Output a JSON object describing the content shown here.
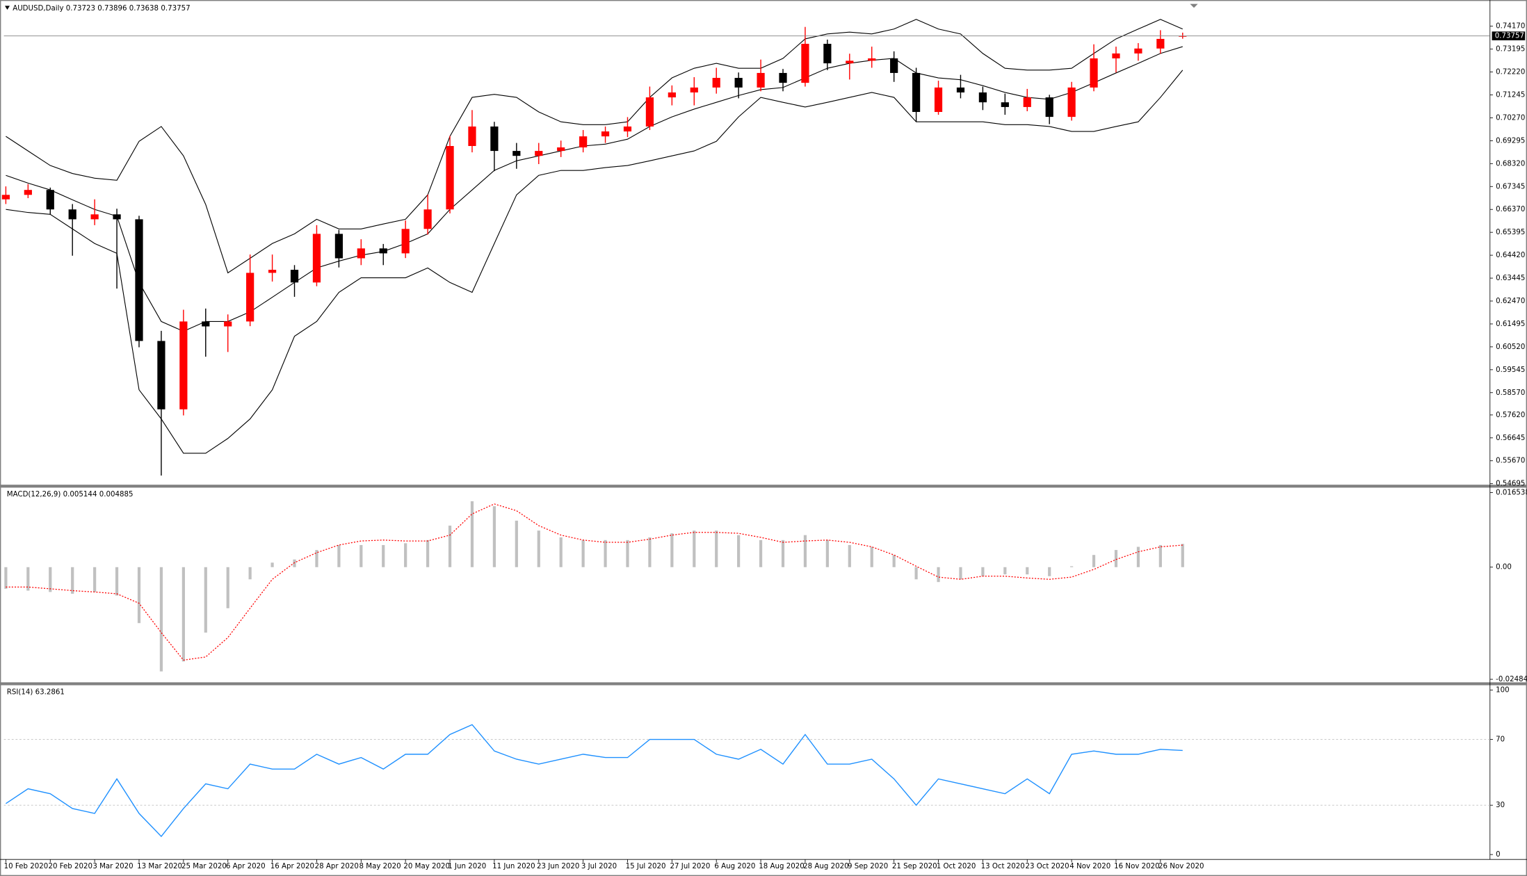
{
  "chart_data": [
    {
      "type": "candlestick",
      "title": "AUDUSD,Daily",
      "categories": [
        "10 Feb 2020",
        null,
        "20 Feb 2020",
        null,
        "3 Mar 2020",
        null,
        "13 Mar 2020",
        null,
        "25 Mar 2020",
        null,
        "6 Apr 2020",
        null,
        "16 Apr 2020",
        null,
        "28 Apr 2020",
        null,
        "8 May 2020",
        null,
        "20 May 2020",
        null,
        "1 Jun 2020",
        null,
        "11 Jun 2020",
        null,
        "23 Jun 2020",
        null,
        "3 Jul 2020",
        null,
        "15 Jul 2020",
        null,
        "27 Jul 2020",
        null,
        "6 Aug 2020",
        null,
        "18 Aug 2020",
        null,
        "28 Aug 2020",
        null,
        "9 Sep 2020",
        null,
        "21 Sep 2020",
        null,
        "1 Oct 2020",
        null,
        "13 Oct 2020",
        null,
        "23 Oct 2020",
        null,
        "4 Nov 2020",
        null,
        "16 Nov 2020",
        null,
        "26 Nov 2020",
        null
      ],
      "candles": [
        [
          0.668,
          0.6735,
          0.666,
          0.6699
        ],
        [
          0.6699,
          0.6745,
          0.6685,
          0.672
        ],
        [
          0.672,
          0.673,
          0.6615,
          0.6637
        ],
        [
          0.6637,
          0.666,
          0.644,
          0.6595
        ],
        [
          0.6595,
          0.668,
          0.657,
          0.6616
        ],
        [
          0.6616,
          0.664,
          0.63,
          0.6595
        ],
        [
          0.6595,
          0.661,
          0.605,
          0.6077
        ],
        [
          0.6077,
          0.612,
          0.5504,
          0.5786
        ],
        [
          0.5786,
          0.621,
          0.576,
          0.616
        ],
        [
          0.616,
          0.6215,
          0.601,
          0.6139
        ],
        [
          0.6139,
          0.619,
          0.603,
          0.616
        ],
        [
          0.616,
          0.6445,
          0.614,
          0.6367
        ],
        [
          0.6367,
          0.6445,
          0.633,
          0.638
        ],
        [
          0.638,
          0.64,
          0.6265,
          0.6326
        ],
        [
          0.6326,
          0.657,
          0.631,
          0.6533
        ],
        [
          0.6533,
          0.655,
          0.639,
          0.6429
        ],
        [
          0.6429,
          0.651,
          0.64,
          0.6471
        ],
        [
          0.6471,
          0.649,
          0.64,
          0.645
        ],
        [
          0.645,
          0.659,
          0.643,
          0.6554
        ],
        [
          0.6554,
          0.67,
          0.653,
          0.6637
        ],
        [
          0.6637,
          0.695,
          0.662,
          0.6907
        ],
        [
          0.6907,
          0.706,
          0.688,
          0.699
        ],
        [
          0.699,
          0.701,
          0.68,
          0.6886
        ],
        [
          0.6886,
          0.692,
          0.681,
          0.6865
        ],
        [
          0.6865,
          0.692,
          0.683,
          0.6886
        ],
        [
          0.6886,
          0.693,
          0.686,
          0.6901
        ],
        [
          0.6901,
          0.6975,
          0.688,
          0.6948
        ],
        [
          0.6948,
          0.699,
          0.692,
          0.6969
        ],
        [
          0.6969,
          0.703,
          0.6945,
          0.699
        ],
        [
          0.699,
          0.716,
          0.6975,
          0.7114
        ],
        [
          0.7114,
          0.7165,
          0.708,
          0.7135
        ],
        [
          0.7135,
          0.72,
          0.708,
          0.7156
        ],
        [
          0.7156,
          0.724,
          0.713,
          0.7197
        ],
        [
          0.7197,
          0.722,
          0.711,
          0.7156
        ],
        [
          0.7156,
          0.7275,
          0.714,
          0.7218
        ],
        [
          0.7218,
          0.7235,
          0.714,
          0.7176
        ],
        [
          0.7176,
          0.7414,
          0.716,
          0.7342
        ],
        [
          0.7342,
          0.736,
          0.723,
          0.7259
        ],
        [
          0.7259,
          0.73,
          0.719,
          0.727
        ],
        [
          0.727,
          0.733,
          0.724,
          0.728
        ],
        [
          0.728,
          0.731,
          0.718,
          0.7218
        ],
        [
          0.7218,
          0.724,
          0.701,
          0.7052
        ],
        [
          0.7052,
          0.7185,
          0.704,
          0.7156
        ],
        [
          0.7156,
          0.721,
          0.711,
          0.7135
        ],
        [
          0.7135,
          0.716,
          0.706,
          0.7093
        ],
        [
          0.7093,
          0.713,
          0.704,
          0.7073
        ],
        [
          0.7073,
          0.715,
          0.7055,
          0.7114
        ],
        [
          0.7114,
          0.7125,
          0.7,
          0.7031
        ],
        [
          0.7031,
          0.718,
          0.7015,
          0.7156
        ],
        [
          0.7156,
          0.734,
          0.714,
          0.728
        ],
        [
          0.728,
          0.733,
          0.722,
          0.7301
        ],
        [
          0.7301,
          0.7345,
          0.727,
          0.7322
        ],
        [
          0.7322,
          0.74,
          0.73,
          0.7363
        ],
        [
          0.73723,
          0.73896,
          0.73638,
          0.73757
        ]
      ],
      "up_color": "#ff0000",
      "down_color": "#000000",
      "bollinger": {
        "color": "#000000",
        "upper": [
          0.6948,
          0.6886,
          0.6824,
          0.679,
          0.677,
          0.6761,
          0.6927,
          0.699,
          0.6865,
          0.6658,
          0.6367,
          0.6429,
          0.6492,
          0.6533,
          0.6595,
          0.6554,
          0.6554,
          0.6575,
          0.6595,
          0.6699,
          0.6948,
          0.7114,
          0.7127,
          0.7114,
          0.7052,
          0.701,
          0.6998,
          0.6998,
          0.701,
          0.7114,
          0.7197,
          0.7238,
          0.7259,
          0.7238,
          0.7238,
          0.728,
          0.7363,
          0.7384,
          0.7392,
          0.7384,
          0.7405,
          0.7446,
          0.7405,
          0.7384,
          0.7301,
          0.7238,
          0.723,
          0.723,
          0.7238,
          0.7301,
          0.7363,
          0.7405,
          0.7446,
          0.7405
        ],
        "middle": [
          0.6782,
          0.6749,
          0.672,
          0.6678,
          0.6637,
          0.6608,
          0.6326,
          0.616,
          0.6118,
          0.616,
          0.616,
          0.6201,
          0.6263,
          0.6326,
          0.6388,
          0.6417,
          0.6442,
          0.6458,
          0.6492,
          0.6533,
          0.6637,
          0.672,
          0.6803,
          0.6844,
          0.6865,
          0.6886,
          0.6907,
          0.6915,
          0.6936,
          0.699,
          0.7031,
          0.7064,
          0.7093,
          0.7122,
          0.7147,
          0.7156,
          0.7197,
          0.7238,
          0.7259,
          0.7272,
          0.728,
          0.7218,
          0.7197,
          0.7189,
          0.7164,
          0.7135,
          0.7114,
          0.7106,
          0.7135,
          0.7176,
          0.7218,
          0.7259,
          0.7301,
          0.733
        ],
        "lower": [
          0.6637,
          0.6624,
          0.6616,
          0.6554,
          0.6492,
          0.645,
          0.5869,
          0.5745,
          0.5599,
          0.5599,
          0.5662,
          0.5745,
          0.5869,
          0.6097,
          0.616,
          0.6284,
          0.6346,
          0.6346,
          0.6346,
          0.6388,
          0.6326,
          0.6284,
          0.6492,
          0.6699,
          0.6782,
          0.6803,
          0.6803,
          0.6815,
          0.6824,
          0.6844,
          0.6865,
          0.6886,
          0.6927,
          0.7031,
          0.7114,
          0.7093,
          0.7073,
          0.7093,
          0.7114,
          0.7135,
          0.7114,
          0.701,
          0.701,
          0.701,
          0.701,
          0.6998,
          0.6998,
          0.699,
          0.6969,
          0.6969,
          0.699,
          0.701,
          0.7114,
          0.723
        ]
      },
      "ylim": [
        0.5465,
        0.7512
      ],
      "yticks": [
        {
          "value": 0.7417,
          "label": "0.74170"
        },
        {
          "value": 0.73195,
          "label": "0.73195"
        },
        {
          "value": 0.7222,
          "label": "0.72220"
        },
        {
          "value": 0.71245,
          "label": "0.71245"
        },
        {
          "value": 0.7027,
          "label": "0.70270"
        },
        {
          "value": 0.69295,
          "label": "0.69295"
        },
        {
          "value": 0.6832,
          "label": "0.68320"
        },
        {
          "value": 0.67345,
          "label": "0.67345"
        },
        {
          "value": 0.6637,
          "label": "0.66370"
        },
        {
          "value": 0.65395,
          "label": "0.65395"
        },
        {
          "value": 0.6442,
          "label": "0.64420"
        },
        {
          "value": 0.63445,
          "label": "0.63445"
        },
        {
          "value": 0.6247,
          "label": "0.62470"
        },
        {
          "value": 0.61495,
          "label": "0.61495"
        },
        {
          "value": 0.6052,
          "label": "0.60520"
        },
        {
          "value": 0.59545,
          "label": "0.59545"
        },
        {
          "value": 0.5857,
          "label": "0.58570"
        },
        {
          "value": 0.5762,
          "label": "0.57620"
        },
        {
          "value": 0.56645,
          "label": "0.56645"
        },
        {
          "value": 0.5567,
          "label": "0.55670"
        },
        {
          "value": 0.54695,
          "label": "0.54695"
        }
      ]
    },
    {
      "type": "macd",
      "title": "MACD(12,26,9)",
      "histogram": [
        -0.0048,
        -0.0052,
        -0.0055,
        -0.0059,
        -0.0055,
        -0.0063,
        -0.0124,
        -0.0231,
        -0.0209,
        -0.0145,
        -0.0091,
        -0.0027,
        0.001,
        0.0017,
        0.0038,
        0.0049,
        0.0049,
        0.0049,
        0.0053,
        0.006,
        0.0092,
        0.0146,
        0.0135,
        0.0103,
        0.0081,
        0.0066,
        0.006,
        0.006,
        0.006,
        0.0066,
        0.0075,
        0.0081,
        0.0081,
        0.0071,
        0.006,
        0.006,
        0.0071,
        0.006,
        0.0049,
        0.0045,
        0.0027,
        -0.0027,
        -0.0033,
        -0.0027,
        -0.002,
        -0.0016,
        -0.0016,
        -0.002,
        0.0002,
        0.0027,
        0.0038,
        0.0045,
        0.0049,
        0.005144
      ],
      "histogram_color": "#c0c0c0",
      "signal": [
        -0.0044,
        -0.0044,
        -0.0048,
        -0.0052,
        -0.0055,
        -0.0059,
        -0.008,
        -0.0145,
        -0.0206,
        -0.0199,
        -0.0156,
        -0.0091,
        -0.0027,
        0.001,
        0.0032,
        0.0049,
        0.0058,
        0.006,
        0.0058,
        0.0058,
        0.0071,
        0.0118,
        0.014,
        0.0125,
        0.0092,
        0.0071,
        0.006,
        0.0055,
        0.0055,
        0.0062,
        0.0071,
        0.0077,
        0.0077,
        0.0075,
        0.0066,
        0.0055,
        0.0058,
        0.006,
        0.0055,
        0.0045,
        0.0027,
        0.0002,
        -0.0022,
        -0.0027,
        -0.002,
        -0.002,
        -0.0024,
        -0.0027,
        -0.0022,
        -0.0005,
        0.0017,
        0.0034,
        0.0045,
        0.004885
      ],
      "signal_color": "#ff0000",
      "ylim": [
        -0.0253,
        0.0174
      ],
      "yticks": [
        0.016538,
        {
          "value": 0,
          "label": "0.00"
        },
        -0.024849
      ]
    },
    {
      "type": "line",
      "title": "RSI(14)",
      "values": [
        31,
        40,
        37,
        28,
        25,
        46,
        25,
        11,
        28,
        43,
        40,
        55,
        52,
        52,
        61,
        55,
        59,
        52,
        61,
        61,
        73,
        79,
        63,
        58,
        55,
        58,
        61,
        59,
        59,
        70,
        70,
        70,
        61,
        58,
        64,
        55,
        73,
        55,
        55,
        58,
        46,
        30,
        46,
        43,
        40,
        37,
        46,
        37,
        61,
        63,
        61,
        61,
        64,
        63.2861
      ],
      "color": "#1e90ff",
      "ylim": [
        -2.4,
        101.8
      ],
      "yticks": [
        0,
        30,
        70,
        100
      ]
    }
  ]
}
